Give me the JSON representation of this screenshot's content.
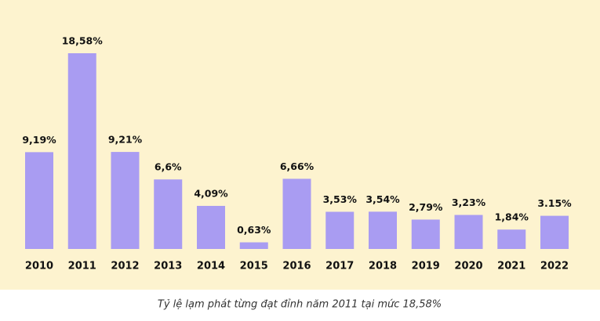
{
  "chart_data": {
    "type": "bar",
    "caption": "Tỷ lệ lạm phát từng đạt đỉnh năm 2011 tại mức 18,58%",
    "categories": [
      "2010",
      "2011",
      "2012",
      "2013",
      "2014",
      "2015",
      "2016",
      "2017",
      "2018",
      "2019",
      "2020",
      "2021",
      "2022"
    ],
    "values": [
      9.19,
      18.58,
      9.21,
      6.6,
      4.09,
      0.63,
      6.66,
      3.53,
      3.54,
      2.79,
      3.23,
      1.84,
      3.15
    ],
    "value_labels": [
      "9,19%",
      "18,58%",
      "9,21%",
      "6,6%",
      "4,09%",
      "0,63%",
      "6,66%",
      "3,53%",
      "3,54%",
      "2,79%",
      "3,23%",
      "1,84%",
      "3.15%"
    ],
    "color": "#a99cf2",
    "background": "#fdf3cf"
  }
}
